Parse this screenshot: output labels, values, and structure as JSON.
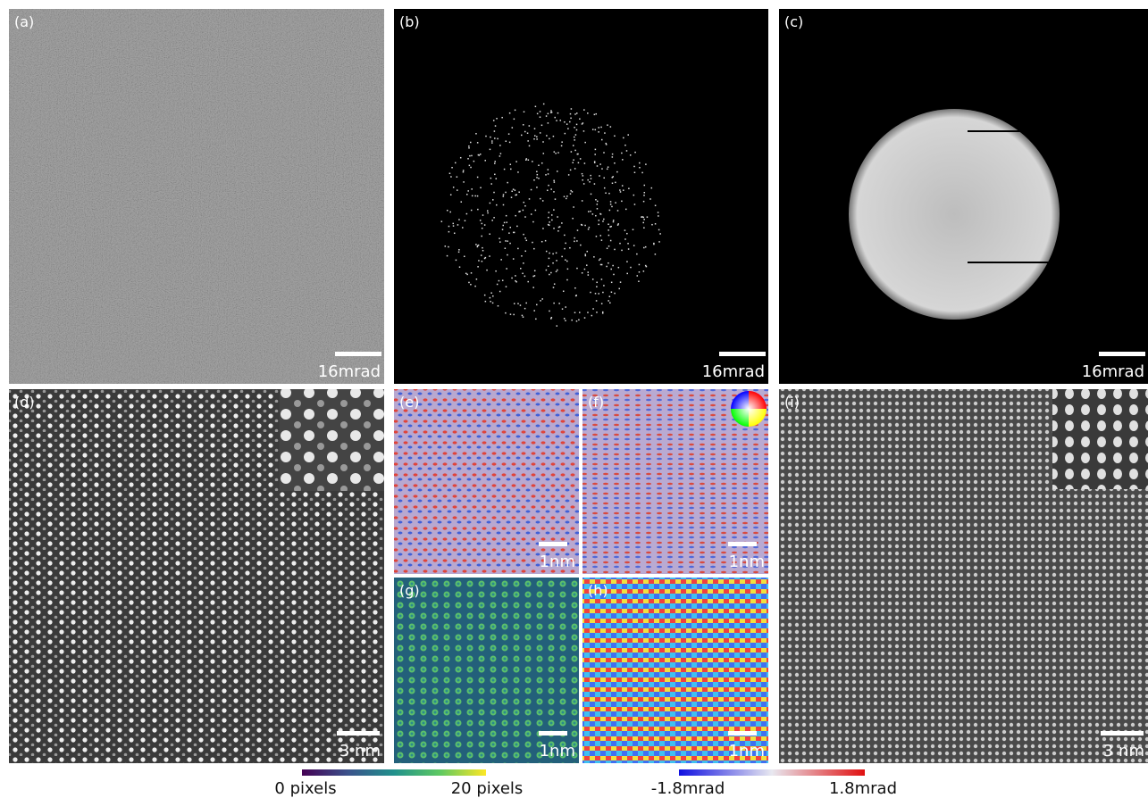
{
  "panels": [
    {
      "label": "(a)",
      "scale_bar": "16mrad"
    },
    {
      "label": "(b)",
      "scale_bar": "16mrad"
    },
    {
      "label": "(c)",
      "scale_bar": "16mrad"
    },
    {
      "label": "(d)",
      "scale_bar": "3 nm"
    },
    {
      "label": "(e)",
      "scale_bar": "1nm"
    },
    {
      "label": "(f)",
      "scale_bar": "1nm"
    },
    {
      "label": "(g)",
      "scale_bar": "1nm"
    },
    {
      "label": "(h)",
      "scale_bar": "1nm"
    },
    {
      "label": "(i)",
      "scale_bar": "3 nm"
    }
  ],
  "colorbars": [
    {
      "min_label": "0 pixels",
      "max_label": "20 pixels"
    },
    {
      "min_label": "-1.8mrad",
      "max_label": "1.8mrad"
    }
  ]
}
